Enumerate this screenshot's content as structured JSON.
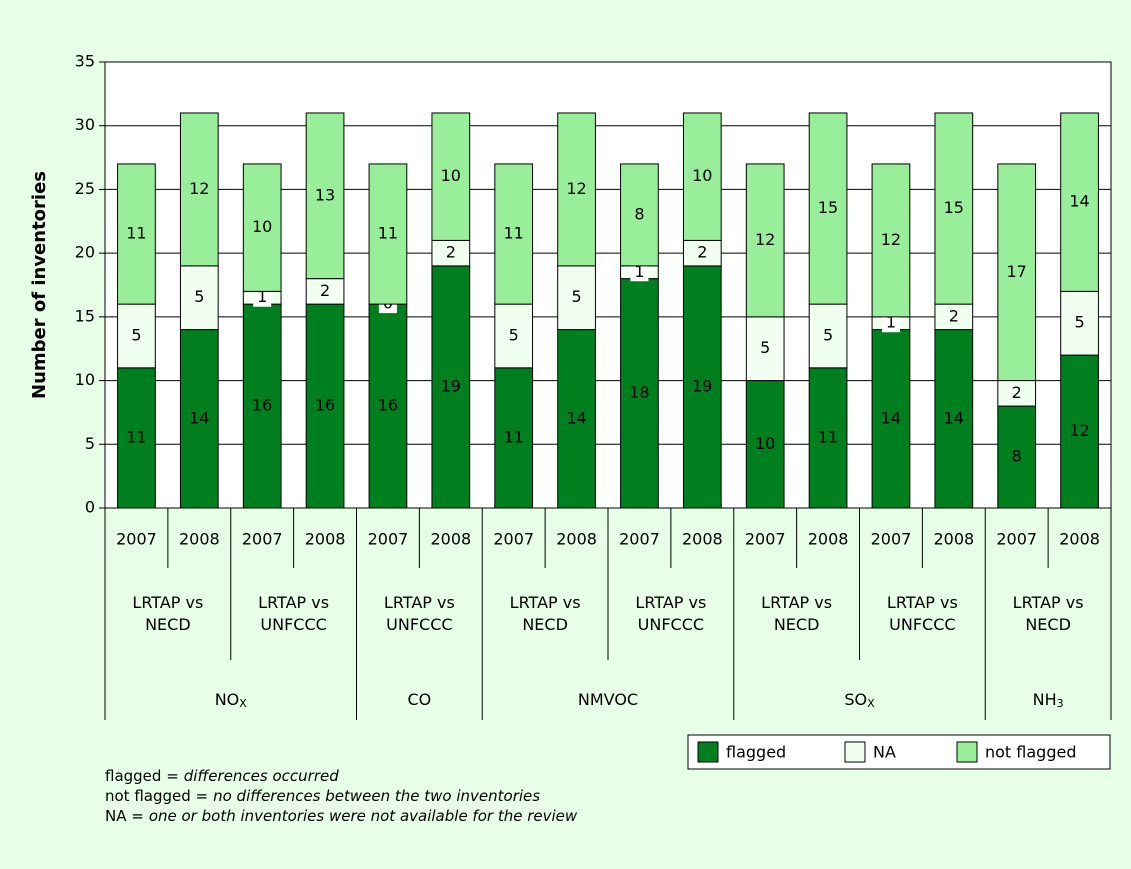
{
  "chart_data": {
    "type": "stacked_bar",
    "y_label": "Number of inventories",
    "ylim": [
      0,
      35
    ],
    "yticks": [
      0,
      5,
      10,
      15,
      20,
      25,
      30,
      35
    ],
    "grid": true,
    "legend": "bottom-right",
    "pollutants": [
      {
        "name": "NO",
        "sub": "X",
        "comparisons": [
          {
            "label": "LRTAP vs NECD",
            "years": [
              "2007",
              "2008"
            ]
          },
          {
            "label": "LRTAP vs UNFCCC",
            "years": [
              "2007",
              "2008"
            ]
          }
        ]
      },
      {
        "name": "CO",
        "comparisons": [
          {
            "label": "LRTAP vs UNFCCC",
            "years": [
              "2007",
              "2008"
            ]
          }
        ]
      },
      {
        "name": "NMVOC",
        "comparisons": [
          {
            "label": "LRTAP vs NECD",
            "years": [
              "2007",
              "2008"
            ]
          },
          {
            "label": "LRTAP vs UNFCCC",
            "years": [
              "2007",
              "2008"
            ]
          }
        ]
      },
      {
        "name": "SO",
        "sub": "X",
        "comparisons": [
          {
            "label": "LRTAP vs NECD",
            "years": [
              "2007",
              "2008"
            ]
          },
          {
            "label": "LRTAP vs UNFCCC",
            "years": [
              "2007",
              "2008"
            ]
          }
        ]
      },
      {
        "name": "NH",
        "sub": "3",
        "comparisons": [
          {
            "label": "LRTAP vs NECD",
            "years": [
              "2007",
              "2008"
            ]
          }
        ]
      }
    ],
    "series": [
      {
        "name": "flagged",
        "color": "#007f1f",
        "label_color": "#ffffff",
        "values": [
          11,
          14,
          16,
          16,
          16,
          19,
          11,
          14,
          18,
          19,
          10,
          11,
          14,
          14,
          8,
          12
        ]
      },
      {
        "name": "NA",
        "color": "#f0fff0",
        "label_color": "#000000",
        "values": [
          5,
          5,
          1,
          2,
          0,
          2,
          5,
          5,
          1,
          2,
          5,
          5,
          1,
          2,
          2,
          5
        ]
      },
      {
        "name": "not flagged",
        "color": "#99ee99",
        "label_color": "#000000",
        "values": [
          11,
          12,
          10,
          13,
          11,
          10,
          11,
          12,
          8,
          10,
          12,
          15,
          12,
          15,
          17,
          14
        ]
      }
    ],
    "notes": [
      {
        "term": "flagged =",
        "definition": "differences occurred"
      },
      {
        "term": "not flagged =",
        "definition": "no differences between the two inventories"
      },
      {
        "term": "NA =",
        "definition": "one or both inventories were not available for the review"
      }
    ]
  }
}
